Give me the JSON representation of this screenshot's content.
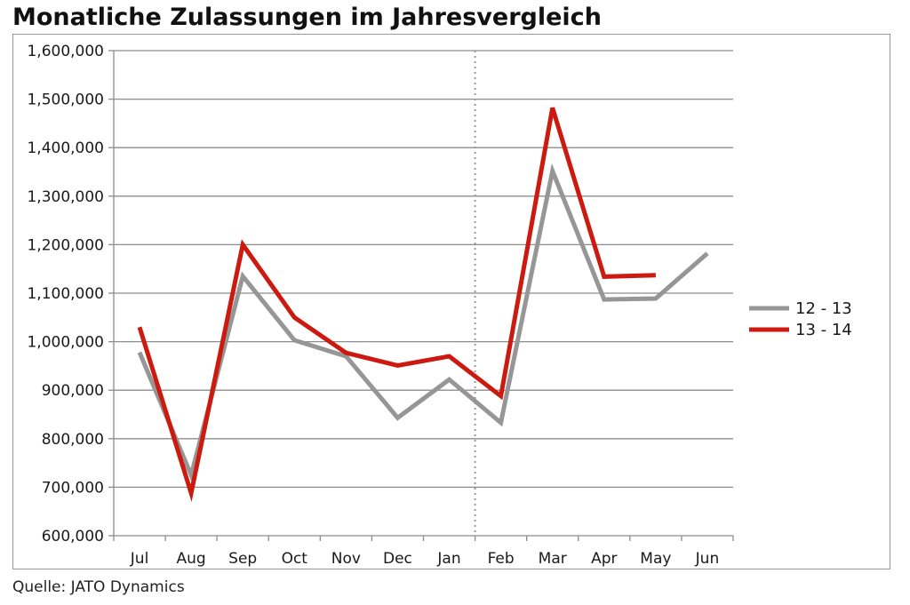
{
  "chart_data": {
    "type": "line",
    "title": "Monatliche Zulassungen im Jahresvergleich",
    "xlabel": "",
    "ylabel": "",
    "categories": [
      "Jul",
      "Aug",
      "Sep",
      "Oct",
      "Nov",
      "Dec",
      "Jan",
      "Feb",
      "Mar",
      "Apr",
      "May",
      "Jun"
    ],
    "ylim": [
      600000,
      1600000
    ],
    "yticks": [
      600000,
      700000,
      800000,
      900000,
      1000000,
      1100000,
      1200000,
      1300000,
      1400000,
      1500000,
      1600000
    ],
    "ytick_labels": [
      "600,000",
      "700,000",
      "800,000",
      "900,000",
      "1,000,000",
      "1,100,000",
      "1,200,000",
      "1,300,000",
      "1,400,000",
      "1,500,000",
      "1,600,000"
    ],
    "grid": true,
    "legend_position": "right",
    "divider_between": [
      "Jan",
      "Feb"
    ],
    "series": [
      {
        "name": "12 - 13",
        "color": "#969696",
        "values": [
          978000,
          725000,
          1135000,
          1003000,
          970000,
          843000,
          922000,
          833000,
          1352000,
          1087000,
          1089000,
          1182000
        ]
      },
      {
        "name": "13 - 14",
        "color": "#cc1a10",
        "values": [
          1030000,
          688000,
          1200000,
          1050000,
          977000,
          951000,
          970000,
          888000,
          1482000,
          1134000,
          1137000,
          null
        ]
      }
    ]
  },
  "source": "Quelle: JATO Dynamics"
}
